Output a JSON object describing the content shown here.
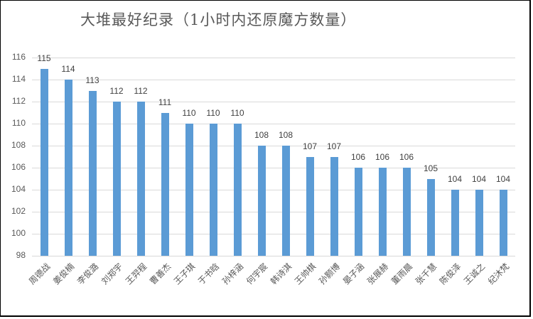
{
  "chart_data": {
    "type": "bar",
    "title": "大堆最好纪录（1小时内还原魔方数量）",
    "xlabel": "",
    "ylabel": "",
    "ylim": [
      98,
      116
    ],
    "yticks": [
      "116",
      "114",
      "112",
      "110",
      "108",
      "106",
      "104",
      "102",
      "100",
      "98"
    ],
    "grid": true,
    "legend": "none",
    "bar_color": "#5b9bd5",
    "categories": [
      "周德战",
      "姜俊楠",
      "李俊潞",
      "刘郑宇",
      "王羿程",
      "曹善杰",
      "王子琪",
      "于书晗",
      "孙梓涵",
      "何宇宸",
      "韩诗淇",
      "王帅棋",
      "孙颢博",
      "晏子涵",
      "张展赫",
      "董雨晨",
      "张千慧",
      "陈俊泽",
      "王诚之",
      "纪沐梵"
    ],
    "values": [
      115,
      114,
      113,
      112,
      112,
      111,
      110,
      110,
      110,
      108,
      108,
      107,
      107,
      106,
      106,
      106,
      105,
      104,
      104,
      104
    ],
    "value_labels": [
      "115",
      "114",
      "113",
      "112",
      "112",
      "111",
      "110",
      "110",
      "110",
      "108",
      "108",
      "107",
      "107",
      "106",
      "106",
      "106",
      "105",
      "104",
      "104",
      "104"
    ]
  }
}
